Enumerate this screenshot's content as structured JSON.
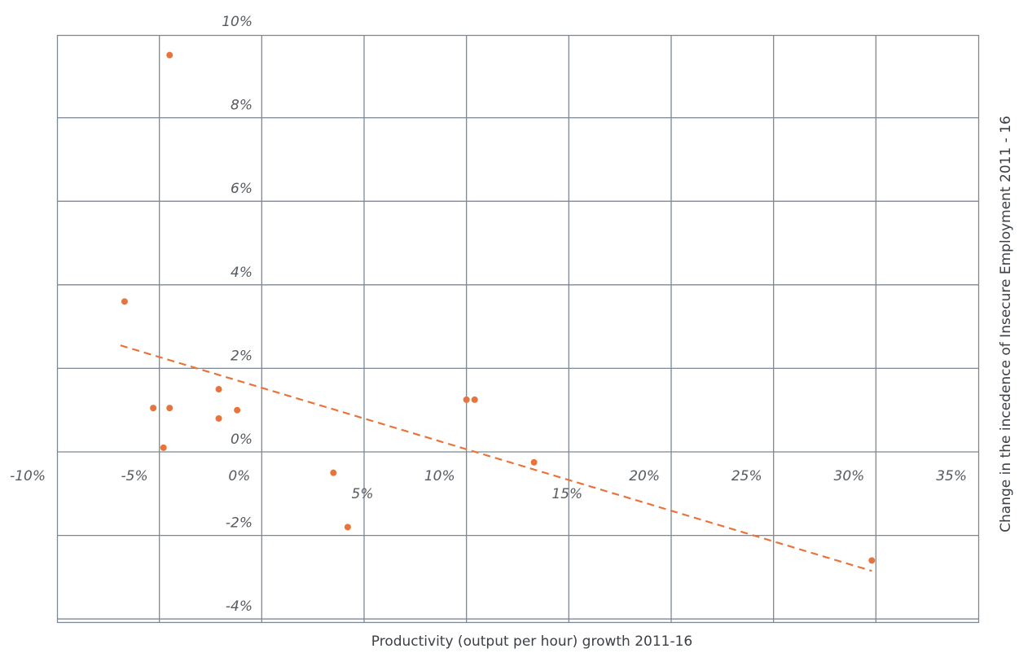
{
  "chart_data": {
    "type": "scatter",
    "title": "",
    "xlabel": "Productivity (output per hour) growth 2011-16",
    "ylabel": "Change in the incedence of Insecure Employment 2011 - 16",
    "xlim": [
      -10,
      35
    ],
    "ylim": [
      -4,
      10
    ],
    "x_ticks": [
      -10,
      -5,
      0,
      5,
      10,
      15,
      20,
      25,
      30,
      35
    ],
    "y_ticks": [
      -4,
      -2,
      0,
      2,
      4,
      6,
      8,
      10
    ],
    "x_tick_labels": [
      "-10%",
      "-5%",
      "0%",
      "5%",
      "10%",
      "15%",
      "20%",
      "25%",
      "30%",
      "35%"
    ],
    "y_tick_labels": [
      "-4%",
      "-2%",
      "0%",
      "2%",
      "4%",
      "6%",
      "8%",
      "10%"
    ],
    "grid": true,
    "colors": {
      "points": "#e8743b",
      "trendline": "#e8743b",
      "grid": "#7d8895"
    },
    "points": [
      {
        "x": -4.5,
        "y": 9.5
      },
      {
        "x": -6.7,
        "y": 3.6
      },
      {
        "x": -5.3,
        "y": 1.05
      },
      {
        "x": -4.5,
        "y": 1.05
      },
      {
        "x": -2.1,
        "y": 1.5
      },
      {
        "x": -1.2,
        "y": 1.0
      },
      {
        "x": -2.1,
        "y": 0.8
      },
      {
        "x": -4.8,
        "y": 0.1
      },
      {
        "x": 3.5,
        "y": -0.5
      },
      {
        "x": 4.2,
        "y": -1.8
      },
      {
        "x": 10.0,
        "y": 1.25
      },
      {
        "x": 10.4,
        "y": 1.25
      },
      {
        "x": 13.3,
        "y": -0.25
      },
      {
        "x": 29.8,
        "y": -2.6
      }
    ],
    "trendline": {
      "style": "dashed",
      "x": [
        -6.9,
        29.8
      ],
      "y": [
        2.55,
        -2.85
      ]
    }
  }
}
